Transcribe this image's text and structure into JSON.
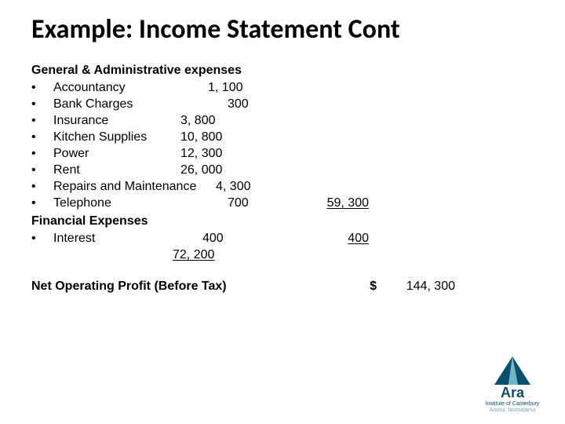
{
  "title": "Example: Income Statement Cont",
  "sections": {
    "ga_head": "General & Administrative expenses",
    "fin_head": "Financial Expenses"
  },
  "ga_items": [
    {
      "label": "Accountancy",
      "value": "1, 100",
      "pad": 225
    },
    {
      "label": "Bank Charges",
      "value": "300",
      "pad": 250
    },
    {
      "label": "Insurance",
      "value": "3, 800",
      "pad": 190
    },
    {
      "label": "Kitchen Supplies",
      "value": "10, 800",
      "pad": 190
    },
    {
      "label": "Power",
      "value": "12, 300",
      "pad": 190
    },
    {
      "label": "Rent",
      "value": "26, 000",
      "pad": 190
    },
    {
      "label": "Repairs and Maintenance",
      "value": "4, 300",
      "pad": 235
    },
    {
      "label": "Telephone",
      "value": "700",
      "pad": 250
    }
  ],
  "ga_subtotal": "59, 300",
  "fin_items": [
    {
      "label": "Interest",
      "value": "400",
      "pad": 218
    }
  ],
  "fin_subtotal": "400",
  "running_total": "72, 200",
  "net": {
    "label": "Net Operating Profit (Before Tax)",
    "currency": "$",
    "amount": "144, 300"
  },
  "logo": {
    "name": "Ara",
    "sub1": "Institute of Canterbury",
    "sub2": "Aronui, taumatanui",
    "tri_color": "#0a4f6b",
    "tri_accent": "#6fb6c9"
  },
  "colors": {
    "text": "#000000",
    "background": "#ffffff"
  }
}
